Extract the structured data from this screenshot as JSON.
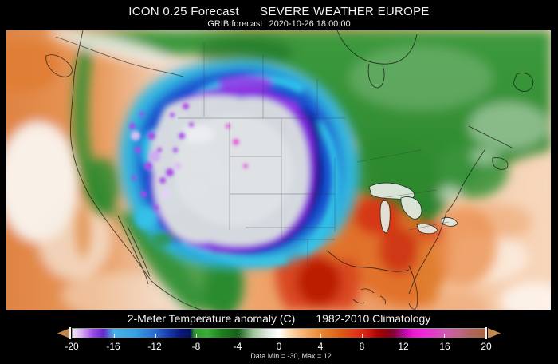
{
  "header": {
    "model": "ICON 0.25 Forecast",
    "site": "SEVERE WEATHER EUROPE",
    "product": "GRIB forecast",
    "valid_time": "2020-10-26 18:00:00"
  },
  "footer": {
    "parameter": "2-Meter Temperature anomaly (C)",
    "climatology": "1982-2010 Climatology",
    "stats": "Data Min = -30, Max = 12"
  },
  "colorbar": {
    "units": "C",
    "range": [
      -20,
      20
    ],
    "ticks": [
      -20,
      -16,
      -12,
      -8,
      -4,
      0,
      4,
      8,
      12,
      16,
      20
    ],
    "arrow_color": "#c08850",
    "stops": [
      {
        "value": -20,
        "color": "#efe7f5"
      },
      {
        "value": -19,
        "color": "#d2a4ee"
      },
      {
        "value": -18,
        "color": "#9a4ae8"
      },
      {
        "value": -17,
        "color": "#6428c8"
      },
      {
        "value": -16,
        "color": "#4ab0e6"
      },
      {
        "value": -14,
        "color": "#35a2e2"
      },
      {
        "value": -12,
        "color": "#2a6ad2"
      },
      {
        "value": -10.5,
        "color": "#1634a6"
      },
      {
        "value": -9.5,
        "color": "#0a1678"
      },
      {
        "value": -8.6,
        "color": "#071260"
      },
      {
        "value": -8.2,
        "color": "#2f9a2e"
      },
      {
        "value": -7,
        "color": "#3aaf38"
      },
      {
        "value": -5.5,
        "color": "#1e7d1f"
      },
      {
        "value": -4,
        "color": "#15601a"
      },
      {
        "value": -2.5,
        "color": "#9dc49c"
      },
      {
        "value": -1,
        "color": "#e2ece2"
      },
      {
        "value": 0,
        "color": "#ffffff"
      },
      {
        "value": 1,
        "color": "#fbdcb4"
      },
      {
        "value": 2,
        "color": "#f6bc80"
      },
      {
        "value": 4,
        "color": "#ea8830"
      },
      {
        "value": 6,
        "color": "#dc5c12"
      },
      {
        "value": 7.5,
        "color": "#e03418"
      },
      {
        "value": 8.5,
        "color": "#d51f14"
      },
      {
        "value": 9.5,
        "color": "#ac0404"
      },
      {
        "value": 10.5,
        "color": "#8c0010"
      },
      {
        "value": 11.2,
        "color": "#86043c"
      },
      {
        "value": 12,
        "color": "#b8059e"
      },
      {
        "value": 13,
        "color": "#ee17d2"
      },
      {
        "value": 14,
        "color": "#f128dc"
      },
      {
        "value": 15,
        "color": "#e23cc6"
      },
      {
        "value": 16,
        "color": "#d158b2"
      },
      {
        "value": 17.5,
        "color": "#c06487"
      },
      {
        "value": 18.5,
        "color": "#b26562"
      },
      {
        "value": 20,
        "color": "#a8653f"
      }
    ]
  },
  "map": {
    "region": "North America",
    "palette": {
      "ocean_warm": "#e8965a",
      "land_green": "#2f8f2f",
      "cold_cyan": "#2fb6e2",
      "cold_blue": "#1847cc",
      "cold_navy": "#0a1076",
      "cold_purple": "#8b2be4",
      "offscale_gray": "#d8dcdf",
      "warm_orange": "#e07028",
      "warm_red": "#c72410"
    }
  }
}
